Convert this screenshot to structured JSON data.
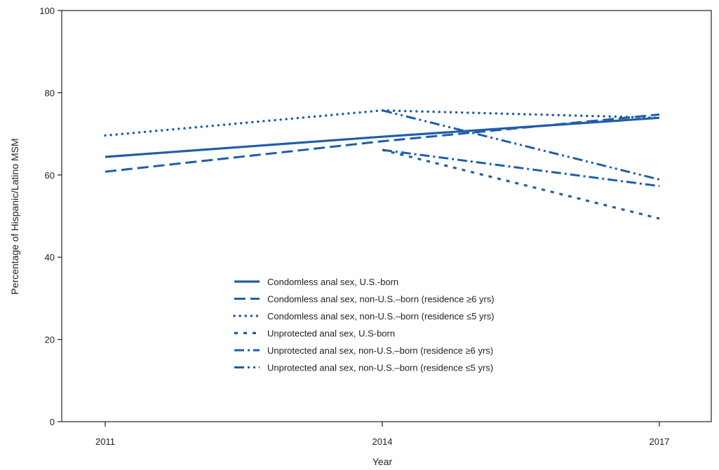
{
  "chart_data": {
    "type": "line",
    "xlabel": "Year",
    "ylabel": "Percentage of Hispanic/Latino MSM",
    "x_categories": [
      "2011",
      "2014",
      "2017"
    ],
    "ylim": [
      0,
      100
    ],
    "yticks": [
      0,
      20,
      40,
      60,
      80,
      100
    ],
    "grid": false,
    "legend_position": "center-bottom",
    "series_color": "#1f5ea8",
    "series": [
      {
        "name": "Condomless anal sex, U.S.-born",
        "dash": "solid",
        "points": [
          {
            "x": "2011",
            "y": 64.4
          },
          {
            "x": "2014",
            "y": 69.3
          },
          {
            "x": "2017",
            "y": 73.9
          }
        ]
      },
      {
        "name": "Condomless anal sex, non-U.S.–born (residence ≥6 yrs)",
        "dash": "dashed",
        "points": [
          {
            "x": "2011",
            "y": 60.8
          },
          {
            "x": "2014",
            "y": 68.2
          },
          {
            "x": "2017",
            "y": 74.7
          }
        ]
      },
      {
        "name": "Condomless anal sex, non-U.S.–born (residence ≤5 yrs)",
        "dash": "dotted",
        "points": [
          {
            "x": "2011",
            "y": 69.6
          },
          {
            "x": "2014",
            "y": 75.7
          },
          {
            "x": "2017",
            "y": 73.9
          }
        ]
      },
      {
        "name": "Unprotected anal sex, U.S-born",
        "dash": "short-dash",
        "points": [
          {
            "x": "2014",
            "y": 66.1
          },
          {
            "x": "2017",
            "y": 49.4
          }
        ]
      },
      {
        "name": "Unprotected anal sex, non-U.S.–born (residence ≥6 yrs)",
        "dash": "dash-dot",
        "points": [
          {
            "x": "2014",
            "y": 66.1
          },
          {
            "x": "2017",
            "y": 57.3
          }
        ]
      },
      {
        "name": "Unprotected anal sex, non-U.S.–born (residence ≤5 yrs)",
        "dash": "dash-dot-dot",
        "points": [
          {
            "x": "2014",
            "y": 75.7
          },
          {
            "x": "2017",
            "y": 58.9
          }
        ]
      }
    ]
  }
}
